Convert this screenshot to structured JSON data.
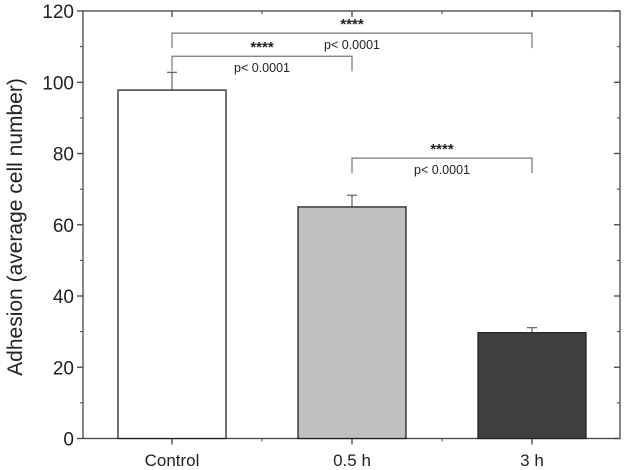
{
  "chart_data": {
    "type": "bar",
    "title": "",
    "xlabel": "",
    "ylabel": "Adhesion (average cell number)",
    "ylim": [
      0,
      120
    ],
    "yticks": [
      0,
      20,
      40,
      60,
      80,
      100,
      120
    ],
    "grid": false,
    "categories": [
      "Control",
      "0.5 h",
      "3 h"
    ],
    "values": [
      97.8,
      65.0,
      29.7
    ],
    "errors": [
      5.0,
      3.3,
      1.4
    ],
    "colors": [
      "#ffffff",
      "#c0c0c0",
      "#404040"
    ],
    "significance": [
      {
        "from": 0,
        "to": 2,
        "level": 113.8,
        "stars": "****",
        "p_text": "p< 0.0001"
      },
      {
        "from": 0,
        "to": 1,
        "level": 107.3,
        "stars": "****",
        "p_text": "p< 0.0001"
      },
      {
        "from": 1,
        "to": 2,
        "level": 78.7,
        "stars": "****",
        "p_text": "p< 0.0001"
      }
    ]
  }
}
